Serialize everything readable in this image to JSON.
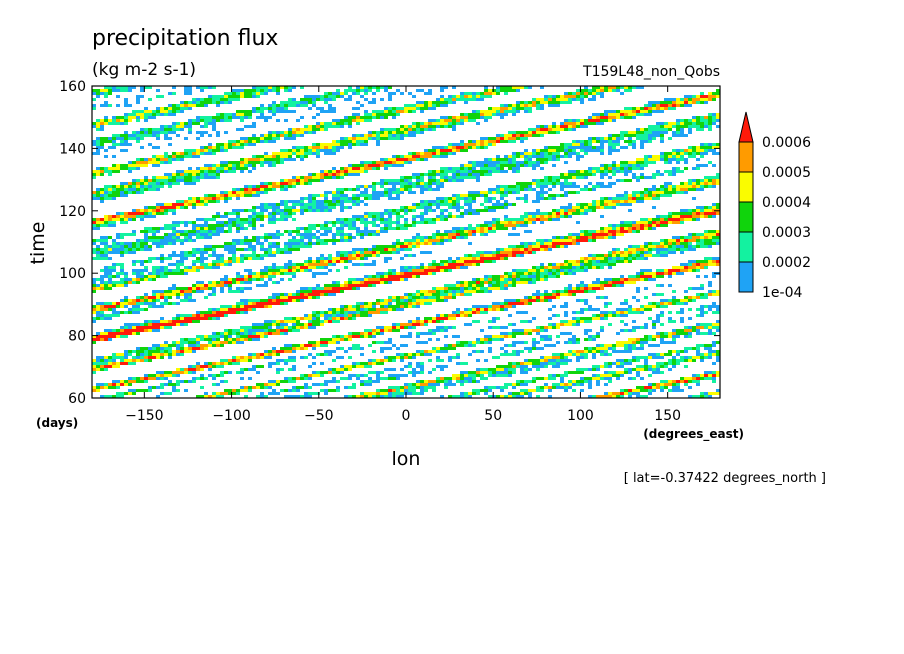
{
  "chart_data": {
    "type": "heatmap",
    "title": "precipitation flux",
    "units": "(kg m-2 s-1)",
    "run_label": "T159L48_non_Qobs",
    "xlabel": "lon",
    "xunits": "(degrees_east)",
    "ylabel": "time",
    "yunits": "(days)",
    "xlim": [
      -180,
      180
    ],
    "ylim": [
      60,
      160
    ],
    "x_ticks": [
      -150,
      -100,
      -50,
      0,
      50,
      100,
      150
    ],
    "y_ticks": [
      60,
      80,
      100,
      120,
      140,
      160
    ],
    "x_tick_labels": [
      "-150",
      "-100",
      "-50",
      "0",
      "50",
      "100",
      "150"
    ],
    "y_tick_labels": [
      "60",
      "80",
      "100",
      "120",
      "140",
      "160"
    ],
    "colorbar": {
      "levels": [
        0.0001,
        0.0002,
        0.0003,
        0.0004,
        0.0005,
        0.0006
      ],
      "labels": [
        "1e-04",
        "0.0002",
        "0.0003",
        "0.0004",
        "0.0005",
        "0.0006"
      ],
      "colors": [
        "#1fa3f5",
        "#13f2a0",
        "#10d40c",
        "#fafc00",
        "#ff9b00",
        "#ff1a0a"
      ],
      "extend": "max"
    },
    "background": "#ffffff",
    "annotation": "[ lat=-0.37422 degrees_north ]"
  }
}
